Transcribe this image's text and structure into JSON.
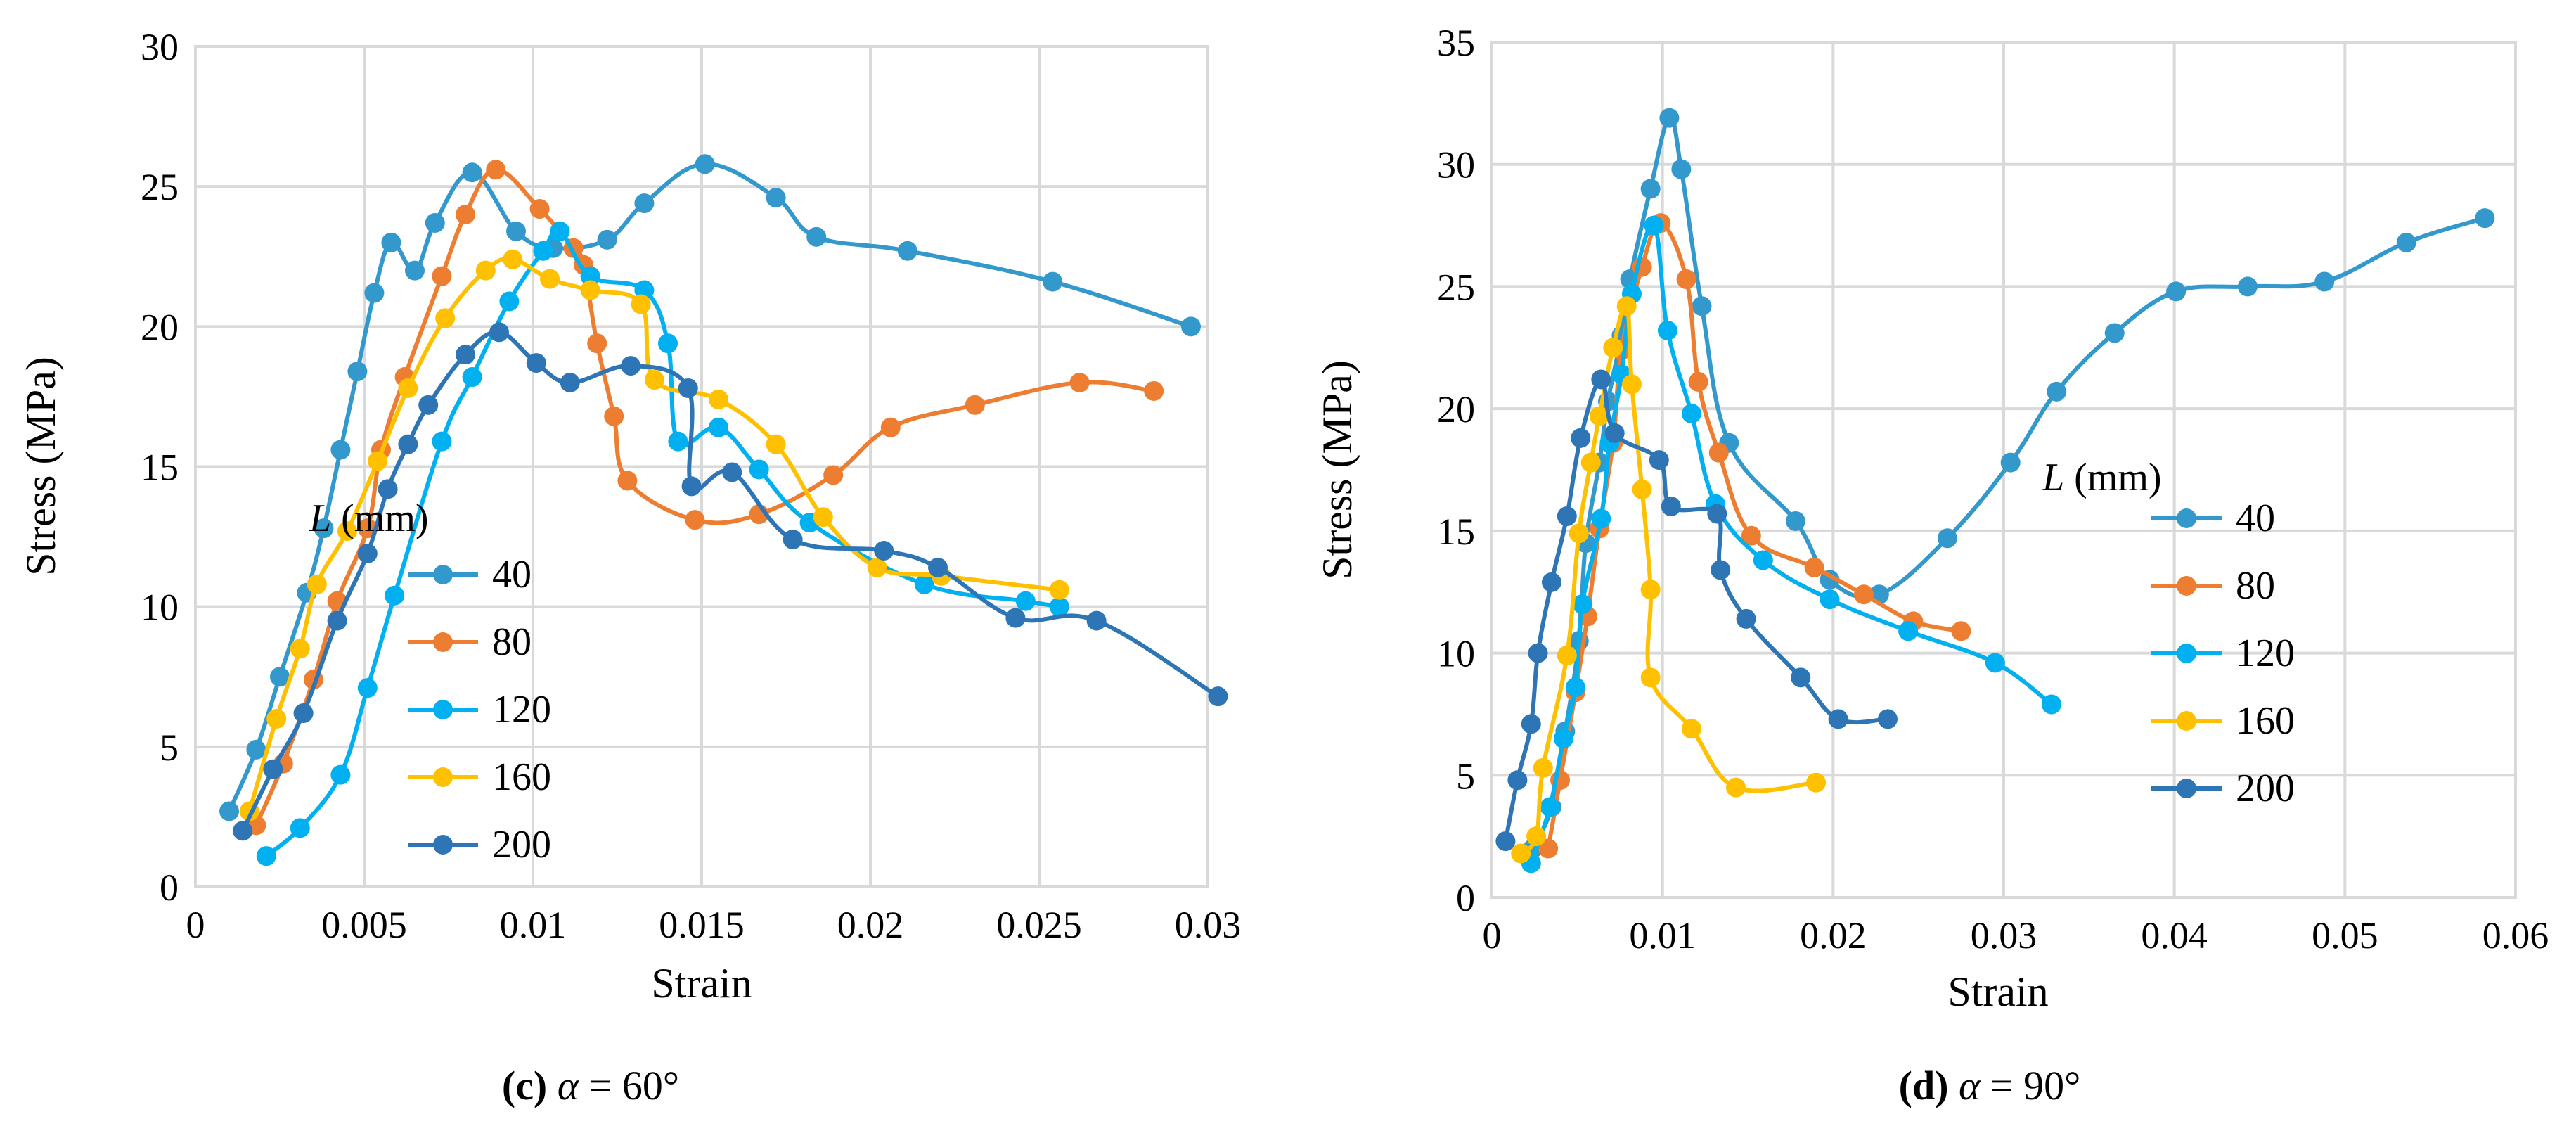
{
  "chart_data": [
    {
      "id": "c",
      "type": "line",
      "xlabel": "Strain",
      "ylabel": "Stress (MPa)",
      "xlim": [
        0,
        0.03
      ],
      "ylim": [
        0,
        30
      ],
      "xticks": [
        0,
        0.005,
        0.01,
        0.015,
        0.02,
        0.025,
        0.03
      ],
      "xtick_labels": [
        "0",
        "0.005",
        "0.01",
        "0.015",
        "0.02",
        "0.025",
        "0.03"
      ],
      "yticks": [
        0,
        5,
        10,
        15,
        20,
        25,
        30
      ],
      "ytick_labels": [
        "0",
        "5",
        "10",
        "15",
        "20",
        "25",
        "30"
      ],
      "legend_title_italic": "L",
      "legend_title_rest": " (mm)",
      "caption_bold": "(c)",
      "caption_italic": "α",
      "caption_rest": " = 60°",
      "series": [
        {
          "name": "40",
          "color": "#3399CC",
          "points": [
            [
              0.001,
              2.7
            ],
            [
              0.0018,
              4.9
            ],
            [
              0.0025,
              7.5
            ],
            [
              0.0033,
              10.5
            ],
            [
              0.0038,
              12.8
            ],
            [
              0.0043,
              15.6
            ],
            [
              0.0048,
              18.4
            ],
            [
              0.0053,
              21.2
            ],
            [
              0.0058,
              23.0
            ],
            [
              0.0065,
              22.0
            ],
            [
              0.0071,
              23.7
            ],
            [
              0.0082,
              25.5
            ],
            [
              0.0095,
              23.4
            ],
            [
              0.0106,
              22.8
            ],
            [
              0.0122,
              23.1
            ],
            [
              0.0133,
              24.4
            ],
            [
              0.0151,
              25.8
            ],
            [
              0.0172,
              24.6
            ],
            [
              0.0184,
              23.2
            ],
            [
              0.0211,
              22.7
            ],
            [
              0.0254,
              21.6
            ],
            [
              0.0295,
              20.0
            ]
          ]
        },
        {
          "name": "80",
          "color": "#ED7D31",
          "points": [
            [
              0.0018,
              2.2
            ],
            [
              0.0026,
              4.4
            ],
            [
              0.0035,
              7.4
            ],
            [
              0.0042,
              10.2
            ],
            [
              0.0051,
              12.8
            ],
            [
              0.0055,
              15.6
            ],
            [
              0.0062,
              18.2
            ],
            [
              0.0073,
              21.8
            ],
            [
              0.008,
              24.0
            ],
            [
              0.0089,
              25.6
            ],
            [
              0.0102,
              24.2
            ],
            [
              0.0112,
              22.8
            ],
            [
              0.0115,
              22.2
            ],
            [
              0.0119,
              19.4
            ],
            [
              0.0124,
              16.8
            ],
            [
              0.0128,
              14.5
            ],
            [
              0.0148,
              13.1
            ],
            [
              0.0167,
              13.3
            ],
            [
              0.0189,
              14.7
            ],
            [
              0.0206,
              16.4
            ],
            [
              0.0231,
              17.2
            ],
            [
              0.0262,
              18.0
            ],
            [
              0.0284,
              17.7
            ]
          ]
        },
        {
          "name": "120",
          "color": "#00B0F0",
          "points": [
            [
              0.0021,
              1.1
            ],
            [
              0.0031,
              2.1
            ],
            [
              0.0043,
              4.0
            ],
            [
              0.0051,
              7.1
            ],
            [
              0.0059,
              10.4
            ],
            [
              0.0073,
              15.9
            ],
            [
              0.0082,
              18.2
            ],
            [
              0.0093,
              20.9
            ],
            [
              0.0103,
              22.7
            ],
            [
              0.0108,
              23.4
            ],
            [
              0.0117,
              21.8
            ],
            [
              0.0133,
              21.3
            ],
            [
              0.014,
              19.4
            ],
            [
              0.0143,
              15.9
            ],
            [
              0.0155,
              16.4
            ],
            [
              0.0167,
              14.9
            ],
            [
              0.0182,
              13.0
            ],
            [
              0.0216,
              10.8
            ],
            [
              0.0246,
              10.2
            ],
            [
              0.0256,
              10.0
            ]
          ]
        },
        {
          "name": "160",
          "color": "#FFC000",
          "points": [
            [
              0.0016,
              2.7
            ],
            [
              0.0024,
              6.0
            ],
            [
              0.0031,
              8.5
            ],
            [
              0.0036,
              10.8
            ],
            [
              0.0045,
              12.7
            ],
            [
              0.0054,
              15.2
            ],
            [
              0.0063,
              17.8
            ],
            [
              0.0074,
              20.3
            ],
            [
              0.0086,
              22.0
            ],
            [
              0.0094,
              22.4
            ],
            [
              0.0105,
              21.7
            ],
            [
              0.0117,
              21.3
            ],
            [
              0.0132,
              20.8
            ],
            [
              0.0136,
              18.1
            ],
            [
              0.0155,
              17.4
            ],
            [
              0.0172,
              15.8
            ],
            [
              0.0186,
              13.2
            ],
            [
              0.0202,
              11.4
            ],
            [
              0.0221,
              11.1
            ],
            [
              0.0256,
              10.6
            ]
          ]
        },
        {
          "name": "200",
          "color": "#2E75B6",
          "points": [
            [
              0.0014,
              2.0
            ],
            [
              0.0023,
              4.2
            ],
            [
              0.0032,
              6.2
            ],
            [
              0.0042,
              9.5
            ],
            [
              0.0051,
              11.9
            ],
            [
              0.0057,
              14.2
            ],
            [
              0.0063,
              15.8
            ],
            [
              0.0069,
              17.2
            ],
            [
              0.008,
              19.0
            ],
            [
              0.009,
              19.8
            ],
            [
              0.0101,
              18.7
            ],
            [
              0.0111,
              18.0
            ],
            [
              0.0129,
              18.6
            ],
            [
              0.0146,
              17.8
            ],
            [
              0.0147,
              14.3
            ],
            [
              0.0159,
              14.8
            ],
            [
              0.0177,
              12.4
            ],
            [
              0.0204,
              12.0
            ],
            [
              0.022,
              11.4
            ],
            [
              0.0243,
              9.6
            ],
            [
              0.0267,
              9.5
            ],
            [
              0.0303,
              6.8
            ]
          ]
        }
      ]
    },
    {
      "id": "d",
      "type": "line",
      "xlabel": "Strain",
      "ylabel": "Stress (MPa)",
      "xlim": [
        0,
        0.06
      ],
      "ylim": [
        0,
        35
      ],
      "xticks": [
        0,
        0.01,
        0.02,
        0.03,
        0.04,
        0.05,
        0.06
      ],
      "xtick_labels": [
        "0",
        "0.01",
        "0.02",
        "0.03",
        "0.04",
        "0.05",
        "0.06"
      ],
      "yticks": [
        0,
        5,
        10,
        15,
        20,
        25,
        30,
        35
      ],
      "ytick_labels": [
        "0",
        "5",
        "10",
        "15",
        "20",
        "25",
        "30",
        "35"
      ],
      "legend_title_italic": "L",
      "legend_title_rest": " (mm)",
      "caption_bold": "(d)",
      "caption_italic": "α",
      "caption_rest": " = 90°",
      "series": [
        {
          "name": "40",
          "color": "#3399CC",
          "points": [
            [
              0.0024,
              2.0
            ],
            [
              0.0035,
              3.7
            ],
            [
              0.0043,
              6.8
            ],
            [
              0.0051,
              10.5
            ],
            [
              0.0055,
              14.5
            ],
            [
              0.0063,
              17.8
            ],
            [
              0.0068,
              20.3
            ],
            [
              0.0076,
              23.0
            ],
            [
              0.0081,
              25.3
            ],
            [
              0.0093,
              29.0
            ],
            [
              0.0104,
              31.9
            ],
            [
              0.0111,
              29.8
            ],
            [
              0.0123,
              24.2
            ],
            [
              0.0139,
              18.6
            ],
            [
              0.0178,
              15.4
            ],
            [
              0.0198,
              13.0
            ],
            [
              0.0227,
              12.4
            ],
            [
              0.0267,
              14.7
            ],
            [
              0.0304,
              17.8
            ],
            [
              0.0331,
              20.7
            ],
            [
              0.0365,
              23.1
            ],
            [
              0.0401,
              24.8
            ],
            [
              0.0443,
              25.0
            ],
            [
              0.0488,
              25.2
            ],
            [
              0.0536,
              26.8
            ],
            [
              0.0582,
              27.8
            ]
          ]
        },
        {
          "name": "80",
          "color": "#ED7D31",
          "points": [
            [
              0.0033,
              2.0
            ],
            [
              0.004,
              4.8
            ],
            [
              0.0049,
              8.4
            ],
            [
              0.0056,
              11.5
            ],
            [
              0.0063,
              15.1
            ],
            [
              0.0071,
              18.6
            ],
            [
              0.0076,
              22.4
            ],
            [
              0.0088,
              25.8
            ],
            [
              0.0099,
              27.6
            ],
            [
              0.0114,
              25.3
            ],
            [
              0.0121,
              21.1
            ],
            [
              0.0133,
              18.2
            ],
            [
              0.0152,
              14.8
            ],
            [
              0.0189,
              13.5
            ],
            [
              0.0218,
              12.4
            ],
            [
              0.0247,
              11.3
            ],
            [
              0.0275,
              10.9
            ]
          ]
        },
        {
          "name": "120",
          "color": "#00B0F0",
          "points": [
            [
              0.0023,
              1.4
            ],
            [
              0.0034,
              3.7
            ],
            [
              0.0042,
              6.5
            ],
            [
              0.0049,
              8.6
            ],
            [
              0.0053,
              12.0
            ],
            [
              0.0064,
              15.5
            ],
            [
              0.0069,
              18.6
            ],
            [
              0.0076,
              21.4
            ],
            [
              0.0082,
              24.7
            ],
            [
              0.0095,
              27.5
            ],
            [
              0.0103,
              23.2
            ],
            [
              0.0117,
              19.8
            ],
            [
              0.0131,
              16.1
            ],
            [
              0.0159,
              13.8
            ],
            [
              0.0198,
              12.2
            ],
            [
              0.0244,
              10.9
            ],
            [
              0.0295,
              9.6
            ],
            [
              0.0328,
              7.9
            ]
          ]
        },
        {
          "name": "160",
          "color": "#FFC000",
          "points": [
            [
              0.0017,
              1.8
            ],
            [
              0.0026,
              2.5
            ],
            [
              0.003,
              5.3
            ],
            [
              0.0044,
              9.9
            ],
            [
              0.0051,
              14.9
            ],
            [
              0.0058,
              17.8
            ],
            [
              0.0063,
              19.7
            ],
            [
              0.0071,
              22.5
            ],
            [
              0.0079,
              24.2
            ],
            [
              0.0082,
              21.0
            ],
            [
              0.0088,
              16.7
            ],
            [
              0.0093,
              12.6
            ],
            [
              0.0093,
              9.0
            ],
            [
              0.0117,
              6.9
            ],
            [
              0.0143,
              4.5
            ],
            [
              0.019,
              4.7
            ]
          ]
        },
        {
          "name": "200",
          "color": "#2E75B6",
          "points": [
            [
              0.0008,
              2.3
            ],
            [
              0.0015,
              4.8
            ],
            [
              0.0023,
              7.1
            ],
            [
              0.0027,
              10.0
            ],
            [
              0.0035,
              12.9
            ],
            [
              0.0044,
              15.6
            ],
            [
              0.0052,
              18.8
            ],
            [
              0.0064,
              21.2
            ],
            [
              0.0072,
              19.0
            ],
            [
              0.0098,
              17.9
            ],
            [
              0.0105,
              16.0
            ],
            [
              0.0132,
              15.7
            ],
            [
              0.0134,
              13.4
            ],
            [
              0.0149,
              11.4
            ],
            [
              0.0181,
              9.0
            ],
            [
              0.0203,
              7.3
            ],
            [
              0.0232,
              7.3
            ]
          ]
        }
      ]
    }
  ]
}
